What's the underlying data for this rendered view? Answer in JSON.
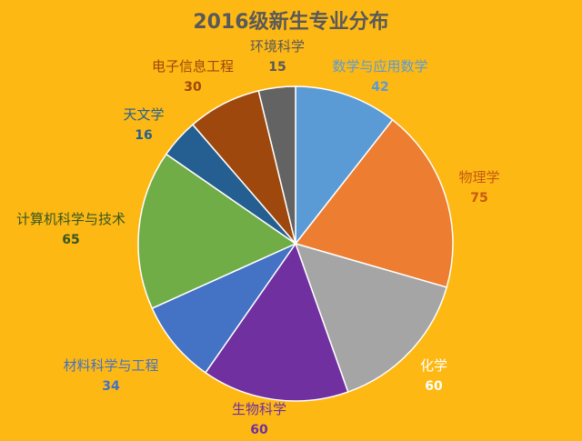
{
  "chart_data": {
    "type": "pie",
    "title": "2016级新生专业分布",
    "start": "12 o'clock",
    "direction": "clockwise",
    "background": "#FDB813",
    "slices": [
      {
        "name": "数学与应用数学",
        "value": 42,
        "color": "#5B9BD5",
        "label_color": "#5B9BD5"
      },
      {
        "name": "物理学",
        "value": 75,
        "color": "#ED7D31",
        "label_color": "#C55A11"
      },
      {
        "name": "化学",
        "value": 60,
        "color": "#A5A5A5",
        "label_color": "#FFFFFF"
      },
      {
        "name": "生物科学",
        "value": 60,
        "color": "#7030A0",
        "label_color": "#7030A0"
      },
      {
        "name": "材料科学与工程",
        "value": 34,
        "color": "#4472C4",
        "label_color": "#4472C4"
      },
      {
        "name": "计算机科学与技术",
        "value": 65,
        "color": "#70AD47",
        "label_color": "#375623"
      },
      {
        "name": "天文学",
        "value": 16,
        "color": "#255E91",
        "label_color": "#255E91"
      },
      {
        "name": "电子信息工程",
        "value": 30,
        "color": "#9E480E",
        "label_color": "#9E480E"
      },
      {
        "name": "环境科学",
        "value": 15,
        "color": "#636363",
        "label_color": "#595959"
      }
    ]
  }
}
